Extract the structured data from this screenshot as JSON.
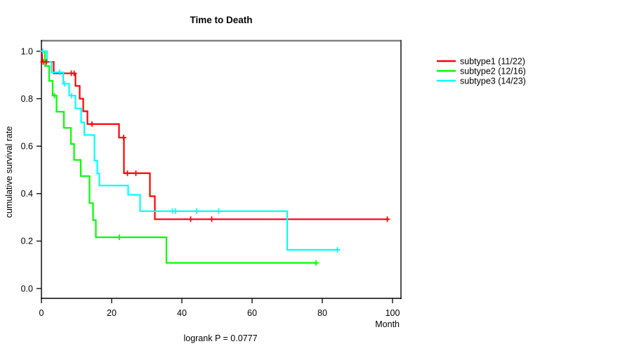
{
  "title": "Time to Death",
  "footnote": "logrank P = 0.0777",
  "axes": {
    "x_label": "Month",
    "y_label": "cumulative survival rate"
  },
  "chart_data": {
    "type": "line",
    "subtype": "kaplan-meier-step",
    "title": "Time to Death",
    "xlabel": "Month",
    "ylabel": "cumulative survival rate",
    "annotation": "logrank P = 0.0777",
    "xlim": [
      0,
      100
    ],
    "ylim": [
      0.0,
      1.0
    ],
    "x_ticks": [
      0,
      20,
      40,
      60,
      80,
      100
    ],
    "y_ticks": [
      0.0,
      0.2,
      0.4,
      0.6,
      0.8,
      1.0
    ],
    "grid": false,
    "legend_position": "right",
    "series": [
      {
        "name": "subtype1 (11/22)",
        "color": "#ff0000",
        "steps": [
          [
            0,
            1.0
          ],
          [
            0.2,
            0.955
          ],
          [
            3.5,
            0.907
          ],
          [
            9.7,
            0.854
          ],
          [
            10.9,
            0.8
          ],
          [
            11.9,
            0.747
          ],
          [
            13.1,
            0.693
          ],
          [
            22.1,
            0.636
          ],
          [
            23.5,
            0.486
          ],
          [
            30.9,
            0.389
          ],
          [
            32.3,
            0.292
          ]
        ],
        "end_time": 99,
        "censor_marks": [
          [
            0.5,
            0.955
          ],
          [
            1.4,
            0.955
          ],
          [
            8.5,
            0.907
          ],
          [
            9.3,
            0.907
          ],
          [
            14.4,
            0.693
          ],
          [
            23.4,
            0.636
          ],
          [
            24.5,
            0.486
          ],
          [
            26.9,
            0.486
          ],
          [
            42.5,
            0.292
          ],
          [
            48.5,
            0.292
          ],
          [
            98.5,
            0.292
          ]
        ]
      },
      {
        "name": "subtype2 (12/16)",
        "color": "#00ff00",
        "steps": [
          [
            0,
            1.0
          ],
          [
            1.0,
            0.938
          ],
          [
            2.2,
            0.875
          ],
          [
            3.2,
            0.813
          ],
          [
            4.3,
            0.745
          ],
          [
            6.4,
            0.677
          ],
          [
            8.4,
            0.609
          ],
          [
            9.3,
            0.542
          ],
          [
            11.2,
            0.474
          ],
          [
            13.7,
            0.36
          ],
          [
            14.7,
            0.288
          ],
          [
            15.5,
            0.216
          ],
          [
            35.6,
            0.108
          ]
        ],
        "end_time": 78.6,
        "censor_marks": [
          [
            3.7,
            0.813
          ],
          [
            22.2,
            0.216
          ],
          [
            78.2,
            0.108
          ]
        ]
      },
      {
        "name": "subtype3 (14/23)",
        "color": "#00ffff",
        "steps": [
          [
            0,
            1.0
          ],
          [
            1.6,
            0.955
          ],
          [
            2.9,
            0.911
          ],
          [
            6.2,
            0.863
          ],
          [
            7.9,
            0.813
          ],
          [
            9.7,
            0.759
          ],
          [
            11.3,
            0.7
          ],
          [
            12.2,
            0.647
          ],
          [
            15.1,
            0.539
          ],
          [
            15.9,
            0.485
          ],
          [
            16.5,
            0.434
          ],
          [
            24.7,
            0.395
          ],
          [
            28.1,
            0.326
          ],
          [
            70.0,
            0.163
          ]
        ],
        "end_time": 84.8,
        "censor_marks": [
          [
            0.4,
            1.0
          ],
          [
            5.2,
            0.911
          ],
          [
            6.6,
            0.863
          ],
          [
            8.6,
            0.813
          ],
          [
            37.3,
            0.326
          ],
          [
            38.2,
            0.326
          ],
          [
            44.2,
            0.326
          ],
          [
            50.5,
            0.326
          ],
          [
            84.3,
            0.163
          ]
        ]
      }
    ]
  }
}
